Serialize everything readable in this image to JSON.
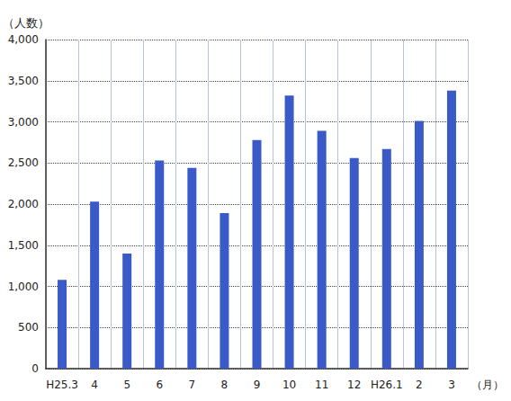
{
  "chart_data": {
    "type": "bar",
    "ylabel": "（人数）",
    "xlabel": "（月）",
    "categories": [
      "H25.3",
      "4",
      "5",
      "6",
      "7",
      "8",
      "9",
      "10",
      "11",
      "12",
      "H26.1",
      "2",
      "3"
    ],
    "values": [
      1080,
      2030,
      1400,
      2530,
      2440,
      1890,
      2780,
      3320,
      2890,
      2560,
      2670,
      3010,
      3380
    ],
    "color": "#3a5bc7",
    "ylim": [
      0,
      4000
    ],
    "yticks": [
      0,
      500,
      1000,
      1500,
      2000,
      2500,
      3000,
      3500,
      4000
    ],
    "grid": true
  }
}
